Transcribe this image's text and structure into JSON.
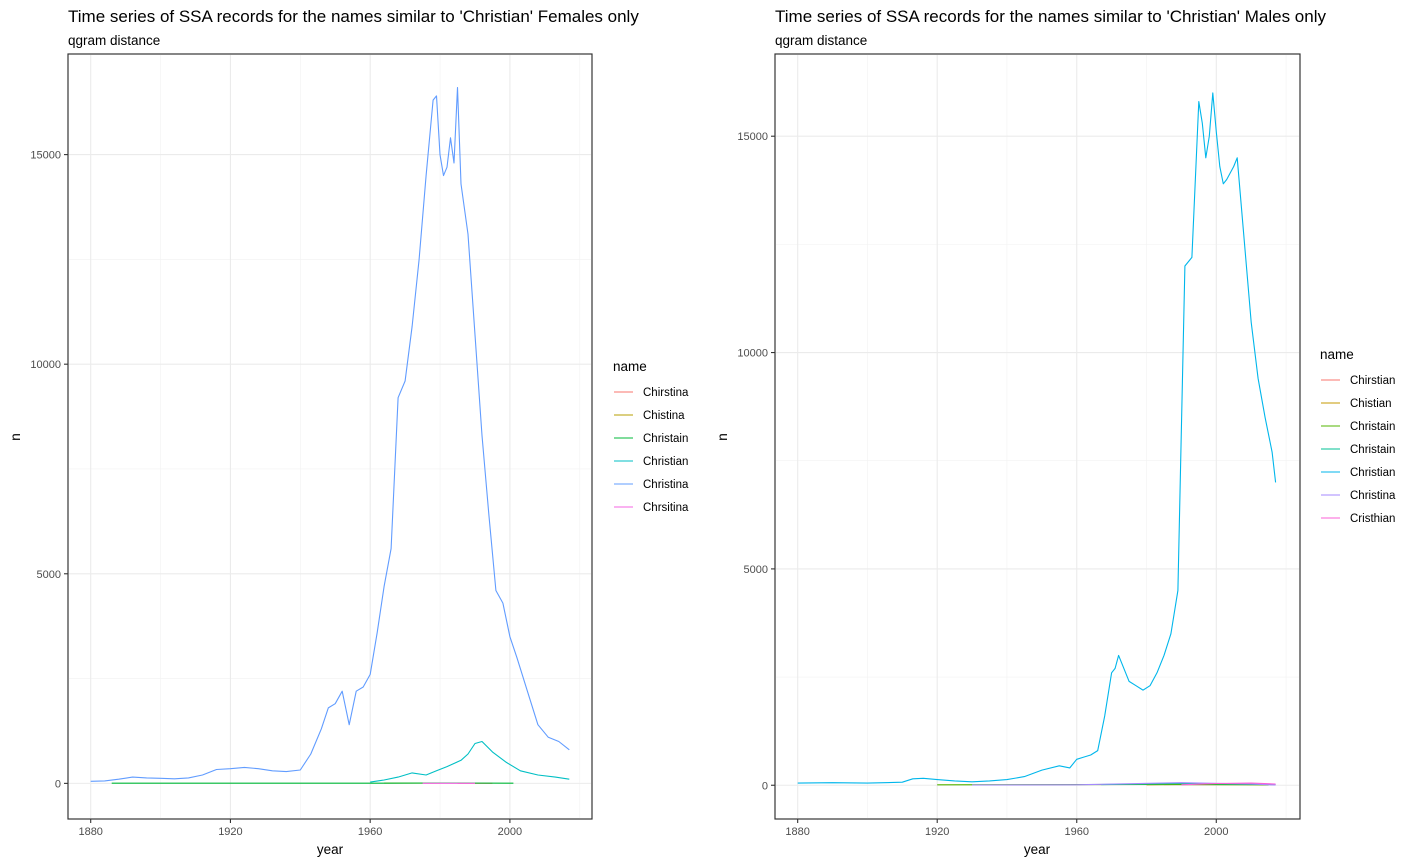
{
  "chart_data": [
    {
      "type": "line",
      "title": "Time series of SSA records for the names similar to 'Christian' Females only",
      "subtitle": "qgram distance",
      "xlabel": "year",
      "ylabel": "n",
      "xlim": [
        1873.5,
        2023.5
      ],
      "ylim": [
        -850,
        17400
      ],
      "xticks": [
        1880,
        1920,
        1960,
        2000
      ],
      "yticks": [
        0,
        5000,
        10000,
        15000
      ],
      "xticks_minor": [
        1900,
        1940,
        1980,
        2020
      ],
      "yticks_minor": [
        2500,
        7500,
        12500
      ],
      "grid": true,
      "legend_title": "name",
      "legend_position": "right",
      "series": [
        {
          "name": "Chirstina",
          "color": "#F8766D",
          "x": [
            1985,
            1995
          ],
          "y": [
            2,
            2
          ]
        },
        {
          "name": "Chistina",
          "color": "#B79F00",
          "x": [
            1964,
            1980
          ],
          "y": [
            6,
            6
          ]
        },
        {
          "name": "Christain",
          "color": "#00BA38",
          "x": [
            1886,
            1960,
            1980,
            2001
          ],
          "y": [
            5,
            5,
            8,
            5
          ]
        },
        {
          "name": "Christian",
          "color": "#00BFC4",
          "x": [
            1960,
            1964,
            1968,
            1972,
            1976,
            1979,
            1982,
            1986,
            1988,
            1990,
            1992,
            1995,
            1999,
            2003,
            2008,
            2013,
            2017
          ],
          "y": [
            30,
            80,
            150,
            250,
            200,
            300,
            400,
            550,
            700,
            950,
            1000,
            750,
            500,
            300,
            200,
            150,
            100
          ]
        },
        {
          "name": "Christina",
          "color": "#619CFF",
          "x": [
            1880,
            1884,
            1888,
            1892,
            1896,
            1900,
            1904,
            1908,
            1912,
            1916,
            1920,
            1924,
            1928,
            1932,
            1936,
            1940,
            1943,
            1946,
            1948,
            1950,
            1952,
            1954,
            1956,
            1958,
            1960,
            1962,
            1964,
            1966,
            1968,
            1970,
            1972,
            1974,
            1976,
            1978,
            1979,
            1980,
            1981,
            1982,
            1983,
            1984,
            1985,
            1986,
            1988,
            1990,
            1992,
            1994,
            1996,
            1998,
            2000,
            2002,
            2005,
            2008,
            2011,
            2014,
            2017
          ],
          "y": [
            50,
            60,
            100,
            150,
            130,
            120,
            110,
            130,
            200,
            330,
            350,
            380,
            350,
            300,
            280,
            320,
            700,
            1300,
            1800,
            1900,
            2200,
            1400,
            2200,
            2300,
            2600,
            3600,
            4700,
            5600,
            9200,
            9600,
            10900,
            12500,
            14500,
            16300,
            16400,
            15000,
            14500,
            14700,
            15400,
            14800,
            16600,
            14300,
            13100,
            10700,
            8300,
            6400,
            4600,
            4300,
            3500,
            3000,
            2200,
            1400,
            1100,
            1000,
            800
          ]
        },
        {
          "name": "Chrsitina",
          "color": "#F564E3",
          "x": [
            1975,
            1990
          ],
          "y": [
            2,
            2
          ]
        }
      ]
    },
    {
      "type": "line",
      "title": "Time series of SSA records for the names similar to 'Christian' Males only",
      "subtitle": "qgram distance",
      "xlabel": "year",
      "ylabel": "n",
      "xlim": [
        1873.5,
        2024
      ],
      "ylim": [
        -780,
        16900
      ],
      "xticks": [
        1880,
        1920,
        1960,
        2000
      ],
      "yticks": [
        0,
        5000,
        10000,
        15000
      ],
      "xticks_minor": [
        1900,
        1940,
        1980,
        2020
      ],
      "yticks_minor": [
        2500,
        7500,
        12500
      ],
      "grid": true,
      "legend_title": "name",
      "legend_position": "right",
      "series": [
        {
          "name": "Chirstian",
          "color": "#F8766D",
          "x": [
            1985,
            2010
          ],
          "y": [
            15,
            15
          ]
        },
        {
          "name": "Chistian",
          "color": "#C49A00",
          "x": [
            1980,
            2000,
            2015
          ],
          "y": [
            10,
            30,
            10
          ]
        },
        {
          "name": "Christain",
          "color": "#53B400",
          "x": [
            1920,
            1980,
            2015
          ],
          "y": [
            10,
            20,
            10
          ]
        },
        {
          "name": "Christain",
          "color": "#00C094",
          "x": [
            1967,
            1990,
            2017
          ],
          "y": [
            15,
            40,
            15
          ]
        },
        {
          "name": "Christian",
          "color": "#00B6EB",
          "x": [
            1880,
            1890,
            1900,
            1910,
            1913,
            1916,
            1920,
            1925,
            1930,
            1935,
            1940,
            1945,
            1950,
            1955,
            1958,
            1960,
            1962,
            1964,
            1966,
            1968,
            1970,
            1971,
            1972,
            1973,
            1975,
            1977,
            1979,
            1981,
            1983,
            1985,
            1987,
            1989,
            1991,
            1993,
            1995,
            1996,
            1997,
            1998,
            1999,
            2000,
            2001,
            2002,
            2003,
            2005,
            2006,
            2008,
            2010,
            2012,
            2014,
            2016,
            2017
          ],
          "y": [
            50,
            60,
            50,
            70,
            150,
            160,
            130,
            100,
            80,
            100,
            130,
            200,
            350,
            450,
            400,
            600,
            650,
            700,
            800,
            1600,
            2600,
            2700,
            3000,
            2800,
            2400,
            2300,
            2200,
            2300,
            2600,
            3000,
            3500,
            4500,
            12000,
            12200,
            15800,
            15300,
            14500,
            15000,
            16000,
            15100,
            14300,
            13900,
            14000,
            14300,
            14500,
            12600,
            10700,
            9400,
            8500,
            7700,
            7000
          ]
        },
        {
          "name": "Christina",
          "color": "#A58AFF",
          "x": [
            1930,
            1960,
            1990,
            2010,
            2017
          ],
          "y": [
            5,
            10,
            60,
            30,
            5
          ]
        },
        {
          "name": "Cristhian",
          "color": "#FB61D7",
          "x": [
            1990,
            2000,
            2010,
            2017
          ],
          "y": [
            10,
            40,
            50,
            30
          ]
        }
      ]
    }
  ]
}
